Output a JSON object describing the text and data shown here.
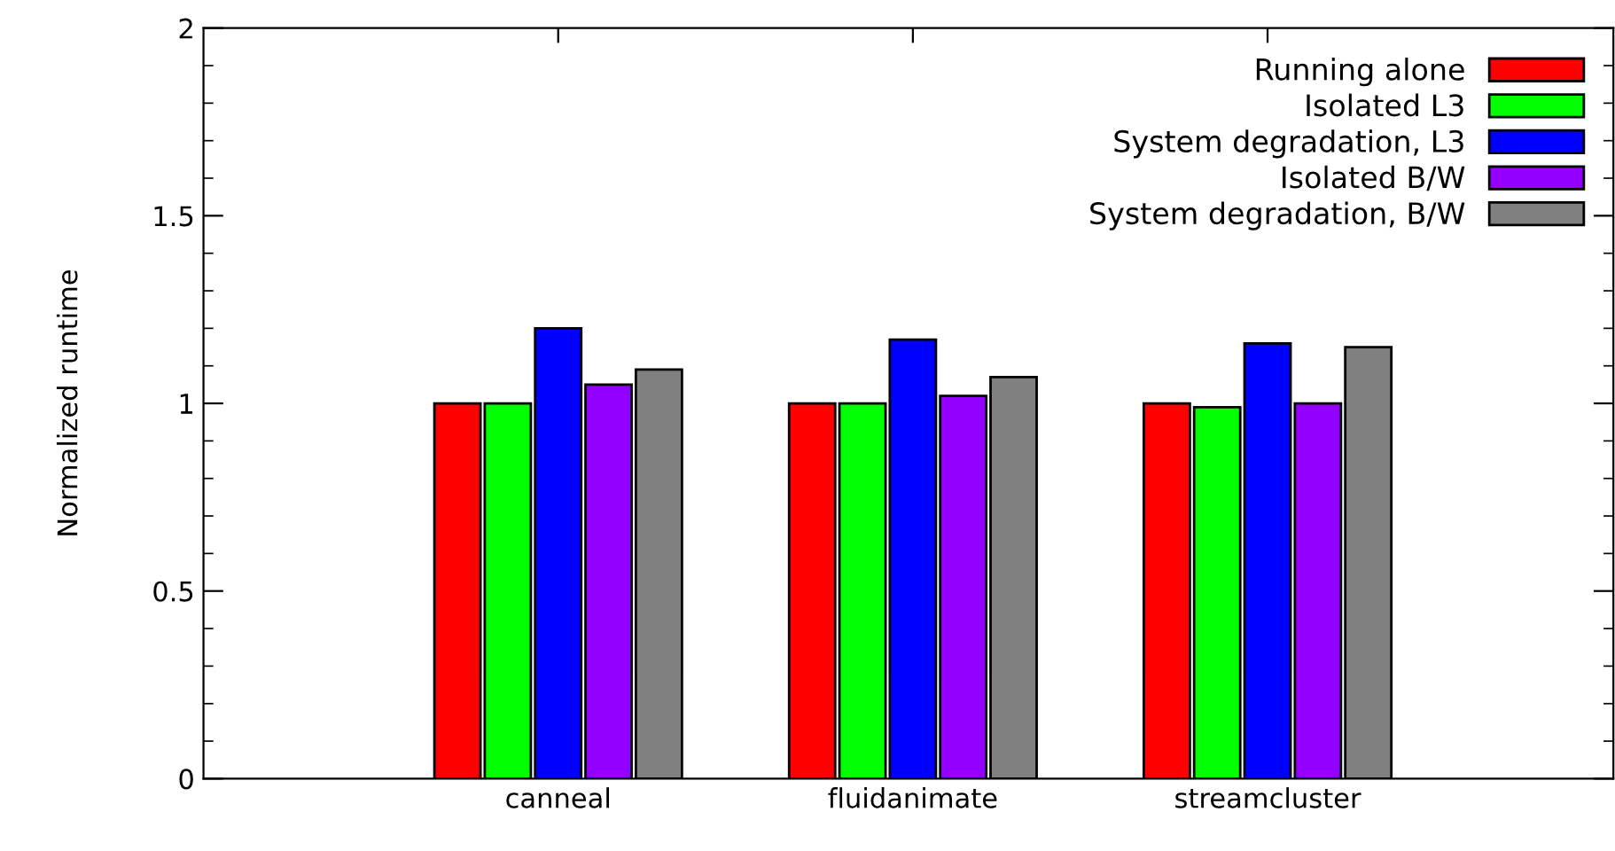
{
  "chart_data": {
    "type": "bar",
    "ylabel": "Normalized runtime",
    "categories": [
      "canneal",
      "fluidanimate",
      "streamcluster"
    ],
    "series": [
      {
        "name": "Running alone",
        "color": "#ff0000",
        "values": [
          1.0,
          1.0,
          1.0
        ]
      },
      {
        "name": "Isolated L3",
        "color": "#00ff00",
        "values": [
          1.0,
          1.0,
          0.99
        ]
      },
      {
        "name": "System degradation, L3",
        "color": "#0000ff",
        "values": [
          1.2,
          1.17,
          1.16
        ]
      },
      {
        "name": "Isolated B/W",
        "color": "#9400ff",
        "values": [
          1.05,
          1.02,
          1.0
        ]
      },
      {
        "name": "System degradation, B/W",
        "color": "#808080",
        "values": [
          1.09,
          1.07,
          1.15
        ]
      }
    ],
    "ylim": [
      0,
      2
    ],
    "yticks": [
      0,
      0.5,
      1,
      1.5,
      2
    ],
    "grid": false,
    "legend": "top right"
  }
}
